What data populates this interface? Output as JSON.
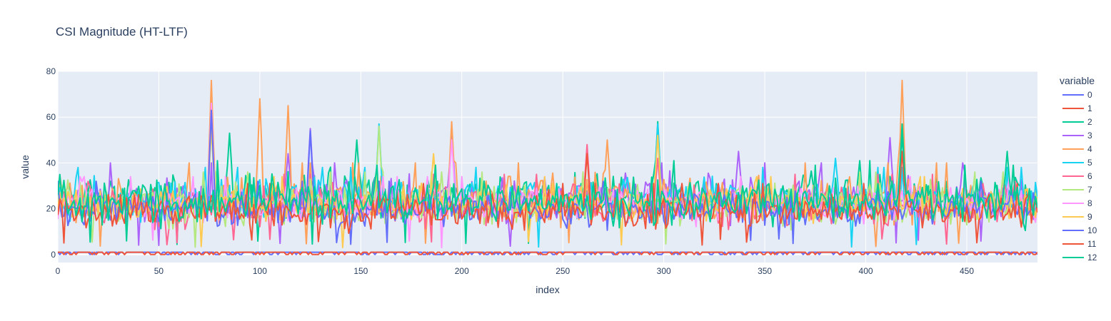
{
  "chart_data": {
    "type": "line",
    "title": "CSI Magnitude (HT-LTF)",
    "xlabel": "index",
    "ylabel": "value",
    "xlim": [
      0,
      485
    ],
    "ylim": [
      -3.5,
      80
    ],
    "xticks": [
      0,
      50,
      100,
      150,
      200,
      250,
      300,
      350,
      400,
      450
    ],
    "yticks": [
      0,
      20,
      40,
      60,
      80
    ],
    "grid": true,
    "legend": {
      "title": "variable",
      "placement": "right"
    },
    "series": [
      {
        "name": "0",
        "color": "#636efa",
        "pattern": "flat",
        "level": 1,
        "baseline": 0
      },
      {
        "name": "1",
        "color": "#EF553B",
        "pattern": "flat",
        "level": 1,
        "baseline": 0
      },
      {
        "name": "2",
        "color": "#00cc96",
        "pattern": "noise",
        "center": 25,
        "spread": 8,
        "peaks": [
          [
            85,
            53
          ],
          [
            148,
            50
          ],
          [
            297,
            58
          ],
          [
            418,
            52
          ]
        ]
      },
      {
        "name": "3",
        "color": "#ab63fa",
        "pattern": "noise",
        "center": 24,
        "spread": 8,
        "peaks": [
          [
            114,
            44
          ],
          [
            125,
            55
          ],
          [
            195,
            55
          ],
          [
            337,
            45
          ],
          [
            412,
            51
          ]
        ]
      },
      {
        "name": "4",
        "color": "#FFA15A",
        "pattern": "noise",
        "center": 24,
        "spread": 8,
        "peaks": [
          [
            76,
            76
          ],
          [
            100,
            68
          ],
          [
            114,
            65
          ],
          [
            195,
            58
          ],
          [
            272,
            50
          ],
          [
            418,
            76
          ]
        ]
      },
      {
        "name": "5",
        "color": "#19d3f3",
        "pattern": "noise",
        "center": 24,
        "spread": 7,
        "peaks": [
          [
            159,
            57
          ],
          [
            297,
            57
          ],
          [
            385,
            42
          ]
        ]
      },
      {
        "name": "6",
        "color": "#FF6692",
        "pattern": "noise",
        "center": 21,
        "spread": 7,
        "peaks": [
          [
            262,
            48
          ],
          [
            297,
            42
          ]
        ]
      },
      {
        "name": "7",
        "color": "#B6E880",
        "pattern": "noise",
        "center": 22,
        "spread": 7,
        "peaks": [
          [
            76,
            55
          ],
          [
            159,
            56
          ]
        ]
      },
      {
        "name": "8",
        "color": "#FF97FF",
        "pattern": "noise",
        "center": 22,
        "spread": 6,
        "peaks": [
          [
            76,
            66
          ],
          [
            195,
            50
          ]
        ]
      },
      {
        "name": "9",
        "color": "#FECB52",
        "pattern": "noise",
        "center": 22,
        "spread": 6,
        "peaks": [
          [
            76,
            57
          ],
          [
            186,
            44
          ],
          [
            297,
            52
          ]
        ]
      },
      {
        "name": "10",
        "color": "#636efa",
        "pattern": "noise",
        "center": 20,
        "spread": 6,
        "peaks": [
          [
            76,
            63
          ],
          [
            125,
            54
          ]
        ]
      },
      {
        "name": "11",
        "color": "#EF553B",
        "pattern": "noise",
        "center": 19,
        "spread": 6,
        "peaks": [
          [
            262,
            44
          ],
          [
            418,
            45
          ]
        ]
      },
      {
        "name": "12",
        "color": "#00cc96",
        "pattern": "noise",
        "center": 23,
        "spread": 8,
        "peaks": [
          [
            418,
            57
          ],
          [
            470,
            45
          ]
        ]
      }
    ]
  }
}
